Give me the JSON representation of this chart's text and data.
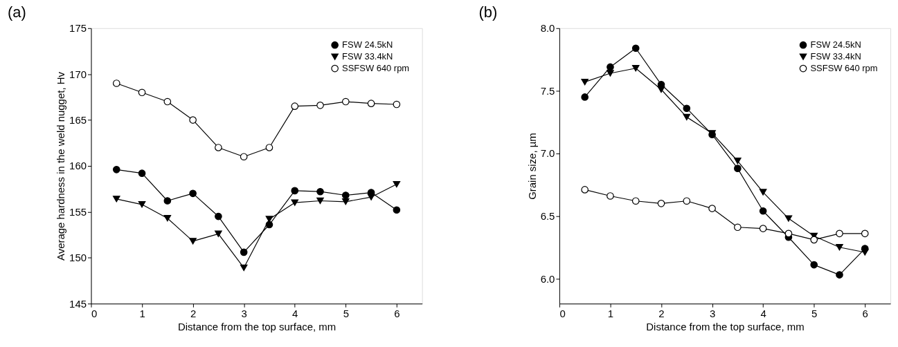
{
  "chart_data": [
    {
      "type": "line",
      "title": "(a)",
      "xlabel": "Distance from the top surface, mm",
      "ylabel": "Average hardness in the weld nugget, Hv",
      "x": [
        0.5,
        1,
        1.5,
        2,
        2.5,
        3,
        3.5,
        4,
        4.5,
        5,
        5.5,
        6
      ],
      "xlim": [
        0,
        6.5
      ],
      "xticks": [
        0,
        1,
        2,
        3,
        4,
        5,
        6
      ],
      "ylim": [
        145,
        175
      ],
      "yticks": [
        145,
        150,
        155,
        160,
        165,
        170,
        175
      ],
      "grid": false,
      "legend": "top right",
      "line_style": "solid",
      "series": [
        {
          "name": "FSW 24.5kN",
          "color": "#000000",
          "marker": "circle",
          "values": [
            159.6,
            159.2,
            156.2,
            157.0,
            154.5,
            150.6,
            153.6,
            157.3,
            157.2,
            156.8,
            157.1,
            155.2
          ]
        },
        {
          "name": "FSW 33.4kN",
          "color": "#000000",
          "marker": "triangle",
          "values": [
            156.4,
            155.8,
            154.3,
            151.8,
            152.6,
            148.9,
            154.2,
            156.0,
            156.2,
            156.1,
            156.6,
            158.0
          ]
        },
        {
          "name": "SSFSW 640 rpm",
          "color": "#ffffff",
          "marker": "circle",
          "values": [
            169.0,
            168.0,
            167.0,
            165.0,
            162.0,
            161.0,
            162.0,
            166.5,
            166.6,
            167.0,
            166.8,
            166.7
          ]
        }
      ]
    },
    {
      "type": "line",
      "title": "(b)",
      "xlabel": "Distance from the top surface, mm",
      "ylabel": "Grain size, µm",
      "x": [
        0.5,
        1,
        1.5,
        2,
        2.5,
        3,
        3.5,
        4,
        4.5,
        5,
        5.5,
        6
      ],
      "xlim": [
        0,
        6.5
      ],
      "xticks": [
        0,
        1,
        2,
        3,
        4,
        5,
        6
      ],
      "ylim": [
        5.8,
        8.0
      ],
      "yticks": [
        {
          "value": 6,
          "label": "6.0"
        },
        6.5,
        {
          "value": 7,
          "label": "7.0"
        },
        7.5,
        {
          "value": 8,
          "label": "8.0"
        }
      ],
      "grid": false,
      "legend": "top right",
      "line_style": "solid",
      "series": [
        {
          "name": "FSW 24.5kN",
          "color": "#000000",
          "marker": "circle",
          "values": [
            7.45,
            7.69,
            7.84,
            7.55,
            7.36,
            7.15,
            6.88,
            6.54,
            6.33,
            6.11,
            6.03,
            6.24
          ]
        },
        {
          "name": "FSW 33.4kN",
          "color": "#000000",
          "marker": "triangle",
          "values": [
            7.57,
            7.64,
            7.68,
            7.51,
            7.29,
            7.16,
            6.94,
            6.69,
            6.48,
            6.34,
            6.25,
            6.21
          ]
        },
        {
          "name": "SSFSW 640 rpm",
          "color": "#ffffff",
          "marker": "circle",
          "values": [
            6.71,
            6.66,
            6.62,
            6.6,
            6.62,
            6.56,
            6.41,
            6.4,
            6.36,
            6.31,
            6.36,
            6.36
          ]
        }
      ]
    }
  ]
}
